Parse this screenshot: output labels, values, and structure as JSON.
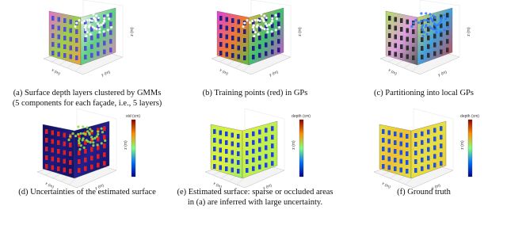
{
  "panels": [
    {
      "caption": [
        "(a) Surface depth layers clustered by GMMs",
        "(5 components for each façade, i.e., 5 layers)"
      ],
      "axes": [
        "z (m)",
        "y (m)",
        "x (m)"
      ]
    },
    {
      "caption": [
        "(b) Training points (red) in GPs"
      ],
      "axes": [
        "z (m)",
        "y (m)",
        "x (m)"
      ]
    },
    {
      "caption": [
        "(c) Partitioning into local GPs"
      ],
      "axes": [
        "z (m)",
        "y (m)",
        "x (m)"
      ]
    },
    {
      "caption": [
        "(d) Uncertainties of the estimated surface"
      ],
      "axes": [
        "z (m)",
        "y (m)",
        "x (m)"
      ],
      "colorbar": "std (cm)"
    },
    {
      "caption": [
        "(e) Estimated surface: sparse or occluded areas",
        "in (a) are inferred with large uncertainty."
      ],
      "axes": [
        "z (m)",
        "y (m)",
        "x (m)"
      ],
      "colorbar": "depth (cm)"
    },
    {
      "caption": [
        "(f) Ground truth"
      ],
      "axes": [
        "z (m)",
        "y (m)",
        "x (m)"
      ],
      "colorbar": "depth (cm)"
    }
  ]
}
